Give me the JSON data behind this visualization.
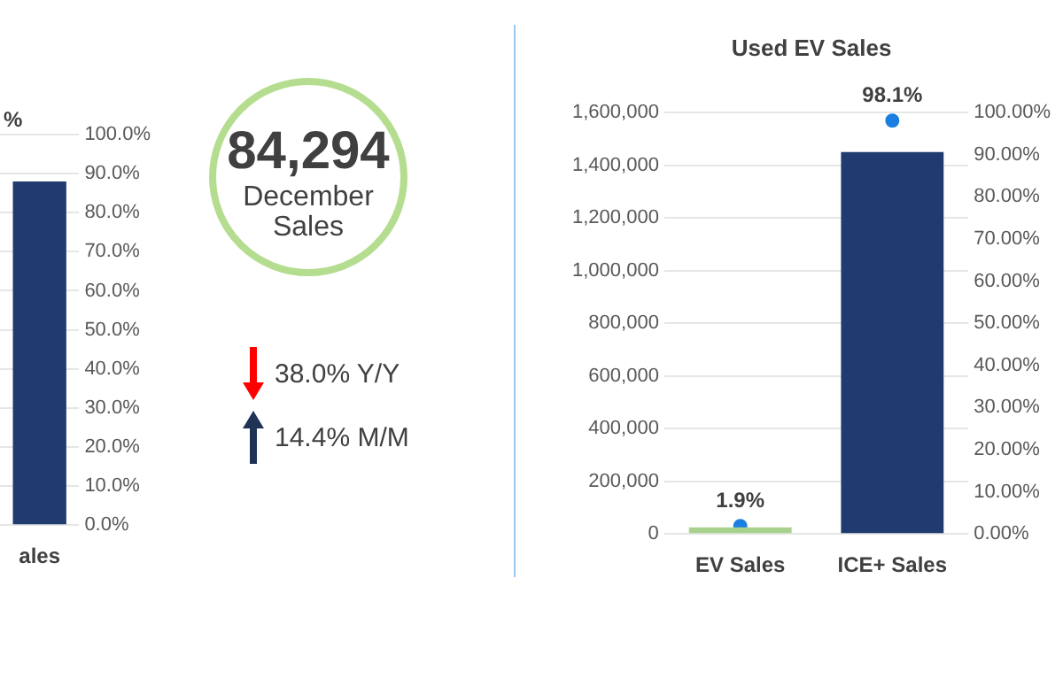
{
  "chart_data": [
    {
      "type": "bar",
      "categories": [
        "ales"
      ],
      "series": [
        {
          "values": [
            88
          ],
          "color": "#1f3b6f",
          "axis": "y2"
        }
      ],
      "y2lim": [
        0,
        100
      ],
      "y2ticks": [
        {
          "value": 0,
          "label": "0.0%"
        },
        {
          "value": 10,
          "label": "10.0%"
        },
        {
          "value": 20,
          "label": "20.0%"
        },
        {
          "value": 30,
          "label": "30.0%"
        },
        {
          "value": 40,
          "label": "40.0%"
        },
        {
          "value": 50,
          "label": "50.0%"
        },
        {
          "value": 60,
          "label": "60.0%"
        },
        {
          "value": 70,
          "label": "70.0%"
        },
        {
          "value": 80,
          "label": "80.0%"
        },
        {
          "value": 90,
          "label": "90.0%"
        },
        {
          "value": 100,
          "label": "100.0%"
        }
      ],
      "grid": "y",
      "annotations": [
        "%"
      ]
    },
    {
      "type": "other",
      "title": "84,294",
      "subtitle": "December Sales",
      "annotations": [
        "38.0% Y/Y",
        "14.4% M/M"
      ]
    },
    {
      "type": "bar",
      "title": "Used EV Sales",
      "categories": [
        "EV Sales",
        "ICE+ Sales"
      ],
      "series": [
        {
          "values": [
            25000,
            1450000
          ],
          "colors": [
            "#a9d18e",
            "#1f3b6f"
          ]
        },
        {
          "type": "scatter",
          "axis": "y2",
          "color": "#1a7fe0",
          "x": [
            "EV Sales",
            "ICE+ Sales"
          ],
          "values": [
            1.9,
            98.1
          ],
          "value_labels": [
            "1.9%",
            "98.1%"
          ]
        }
      ],
      "ylim": [
        0,
        1600000
      ],
      "yticks": [
        {
          "value": 0,
          "label": "0"
        },
        {
          "value": 200000,
          "label": "200,000"
        },
        {
          "value": 400000,
          "label": "400,000"
        },
        {
          "value": 600000,
          "label": "600,000"
        },
        {
          "value": 800000,
          "label": "800,000"
        },
        {
          "value": 1000000,
          "label": "1,000,000"
        },
        {
          "value": 1200000,
          "label": "1,200,000"
        },
        {
          "value": 1400000,
          "label": "1,400,000"
        },
        {
          "value": 1600000,
          "label": "1,600,000"
        }
      ],
      "y2lim": [
        0,
        100
      ],
      "y2ticks": [
        {
          "value": 0,
          "label": "0.00%"
        },
        {
          "value": 10,
          "label": "10.00%"
        },
        {
          "value": 20,
          "label": "20.00%"
        },
        {
          "value": 30,
          "label": "30.00%"
        },
        {
          "value": 40,
          "label": "40.00%"
        },
        {
          "value": 50,
          "label": "50.00%"
        },
        {
          "value": 60,
          "label": "60.00%"
        },
        {
          "value": 70,
          "label": "70.00%"
        },
        {
          "value": 80,
          "label": "80.00%"
        },
        {
          "value": 90,
          "label": "90.00%"
        },
        {
          "value": 100,
          "label": "100.00%"
        }
      ],
      "grid": "y",
      "marker": "circle"
    }
  ]
}
